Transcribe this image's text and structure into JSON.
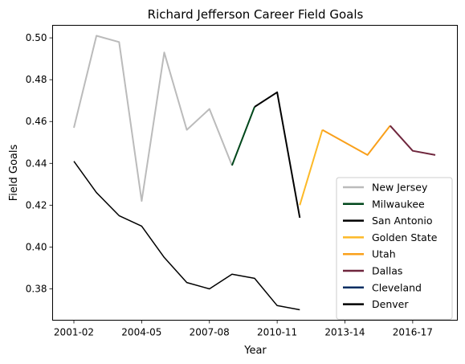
{
  "chart_data": {
    "type": "line",
    "title": "Richard Jefferson Career Field Goals",
    "xlabel": "Year",
    "ylabel": "Field Goals",
    "x_categories": [
      "2001-02",
      "2002-03",
      "2003-04",
      "2004-05",
      "2005-06",
      "2006-07",
      "2007-08",
      "2008-09",
      "2009-10",
      "2010-11",
      "2011-12",
      "2012-13",
      "2013-14",
      "2014-15",
      "2015-16",
      "2016-17",
      "2017-18"
    ],
    "x_ticks": [
      "2001-02",
      "2004-05",
      "2007-08",
      "2010-11",
      "2013-14",
      "2016-17"
    ],
    "ylim": [
      0.365,
      0.506
    ],
    "y_ticks": [
      "0.38",
      "0.40",
      "0.42",
      "0.44",
      "0.46",
      "0.48",
      "0.50"
    ],
    "grid": false,
    "legend_position": "lower-right",
    "series": [
      {
        "name": "New Jersey",
        "color": "#bbbbbb",
        "points": [
          [
            "2001-02",
            0.457
          ],
          [
            "2002-03",
            0.501
          ],
          [
            "2003-04",
            0.498
          ],
          [
            "2004-05",
            0.422
          ],
          [
            "2005-06",
            0.493
          ],
          [
            "2006-07",
            0.456
          ],
          [
            "2007-08",
            0.466
          ],
          [
            "2008-09",
            0.439
          ]
        ]
      },
      {
        "name": "Milwaukee",
        "color": "#00471b",
        "points": [
          [
            "2008-09",
            0.439
          ],
          [
            "2009-10",
            0.467
          ]
        ]
      },
      {
        "name": "San Antonio",
        "color": "#000000",
        "points": [
          [
            "2009-10",
            0.467
          ],
          [
            "2010-11",
            0.474
          ],
          [
            "2011-12",
            0.414
          ]
        ]
      },
      {
        "name": "Golden State",
        "color": "#fdb927",
        "points": [
          [
            "2011-12",
            0.42
          ],
          [
            "2012-13",
            0.456
          ]
        ]
      },
      {
        "name": "Utah",
        "color": "#f9a01b",
        "points": [
          [
            "2012-13",
            0.456
          ],
          [
            "2014-15",
            0.444
          ],
          [
            "2015-16",
            0.458
          ]
        ]
      },
      {
        "name": "Dallas",
        "color": "#6f263d",
        "points": [
          [
            "2015-16",
            0.458
          ],
          [
            "2016-17",
            0.446
          ],
          [
            "2017-18",
            0.444
          ]
        ]
      },
      {
        "name": "Cleveland",
        "color": "#002d62",
        "points": []
      },
      {
        "name": "Denver",
        "color": "#000000",
        "points": []
      }
    ],
    "extra_line": {
      "color": "#000000",
      "points": [
        [
          "2001-02",
          0.441
        ],
        [
          "2002-03",
          0.426
        ],
        [
          "2003-04",
          0.415
        ],
        [
          "2004-05",
          0.41
        ],
        [
          "2005-06",
          0.395
        ],
        [
          "2006-07",
          0.383
        ],
        [
          "2007-08",
          0.38
        ],
        [
          "2008-09",
          0.387
        ],
        [
          "2009-10",
          0.385
        ],
        [
          "2010-11",
          0.372
        ],
        [
          "2011-12",
          0.37
        ]
      ]
    }
  }
}
